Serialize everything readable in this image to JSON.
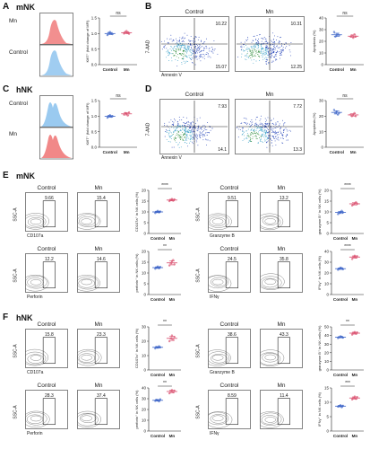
{
  "panels": [
    {
      "id": "A",
      "subtitle": "mNK"
    },
    {
      "id": "B"
    },
    {
      "id": "C",
      "subtitle": "hNK"
    },
    {
      "id": "D"
    },
    {
      "id": "E",
      "subtitle": "mNK"
    },
    {
      "id": "F",
      "subtitle": "hNK"
    }
  ],
  "colors": {
    "control_hist": "#8fc4ee",
    "mn_hist": "#f07b7b",
    "control_dot": "#3a63c7",
    "mn_dot": "#d94a6a"
  },
  "histograms": {
    "A": {
      "labels": [
        "Mn",
        "Control"
      ]
    },
    "C": {
      "labels": [
        "Control",
        "Mn"
      ]
    }
  },
  "scatter": {
    "B": {
      "xlabel": "Annexin V",
      "ylabel": "7-AAD",
      "plots": [
        {
          "title": "Control",
          "q": [
            "10.22",
            "15.07"
          ]
        },
        {
          "title": "Mn",
          "q": [
            "10.31",
            "12.25"
          ]
        }
      ]
    },
    "D": {
      "xlabel": "Annexin V",
      "ylabel": "7-AAD",
      "plots": [
        {
          "title": "Control",
          "q": [
            "7.93",
            "14.1"
          ]
        },
        {
          "title": "Mn",
          "q": [
            "7.72",
            "13.3"
          ]
        }
      ]
    }
  },
  "flow": {
    "E": [
      {
        "xlabel": "CD107a",
        "ylabel": "SSC-A",
        "plots": [
          {
            "title": "Control",
            "gate": "9.66"
          },
          {
            "title": "Mn",
            "gate": "15.4"
          }
        ]
      },
      {
        "xlabel": "Granzyme B",
        "ylabel": "SSC-A",
        "plots": [
          {
            "title": "Control",
            "gate": "9.51"
          },
          {
            "title": "Mn",
            "gate": "13.2"
          }
        ]
      },
      {
        "xlabel": "Perforin",
        "ylabel": "SSC-A",
        "plots": [
          {
            "title": "Control",
            "gate": "12.2"
          },
          {
            "title": "Mn",
            "gate": "14.6"
          }
        ]
      },
      {
        "xlabel": "IFNγ",
        "ylabel": "SSC-A",
        "plots": [
          {
            "title": "Control",
            "gate": "24.5"
          },
          {
            "title": "Mn",
            "gate": "35.8"
          }
        ]
      }
    ],
    "F": [
      {
        "xlabel": "CD107a",
        "ylabel": "SSC-A",
        "plots": [
          {
            "title": "Control",
            "gate": "15.8"
          },
          {
            "title": "Mn",
            "gate": "23.3"
          }
        ]
      },
      {
        "xlabel": "Granzyme B",
        "ylabel": "SSC-A",
        "plots": [
          {
            "title": "Control",
            "gate": "38.6"
          },
          {
            "title": "Mn",
            "gate": "43.3"
          }
        ]
      },
      {
        "xlabel": "Perforin",
        "ylabel": "SSC-A",
        "plots": [
          {
            "title": "Control",
            "gate": "28.3"
          },
          {
            "title": "Mn",
            "gate": "37.4"
          }
        ]
      },
      {
        "xlabel": "IFNγ",
        "ylabel": "SSC-A",
        "plots": [
          {
            "title": "Control",
            "gate": "8.59"
          },
          {
            "title": "Mn",
            "gate": "11.4"
          }
        ]
      }
    ]
  },
  "chart_data": [
    {
      "type": "scatter",
      "panel": "A",
      "categories": [
        "Control",
        "Mn"
      ],
      "ylabel": "Ki67⁺ (fold change of MFI)",
      "ylim": [
        0,
        1.5
      ],
      "yticks": [
        "0.0",
        "0.5",
        "1.0",
        "1.5"
      ],
      "significance": "ns",
      "series": [
        {
          "name": "Control",
          "values": [
            0.95,
            1.02,
            1.05,
            1.0,
            0.98
          ]
        },
        {
          "name": "Mn",
          "values": [
            1.0,
            1.05,
            1.08,
            1.02,
            0.99
          ]
        }
      ]
    },
    {
      "type": "scatter",
      "panel": "B",
      "categories": [
        "Control",
        "Mn"
      ],
      "ylabel": "Apoptosis (%)",
      "ylim": [
        0,
        40
      ],
      "yticks": [
        "0",
        "10",
        "20",
        "30",
        "40"
      ],
      "significance": "ns",
      "series": [
        {
          "name": "Control",
          "values": [
            28,
            24,
            25,
            26,
            25
          ]
        },
        {
          "name": "Mn",
          "values": [
            24,
            25,
            23,
            26,
            24
          ]
        }
      ]
    },
    {
      "type": "scatter",
      "panel": "C",
      "categories": [
        "Control",
        "Mn"
      ],
      "ylabel": "Ki67⁺ (fold change of MFI)",
      "ylim": [
        0,
        1.5
      ],
      "yticks": [
        "0.0",
        "0.5",
        "1.0",
        "1.5"
      ],
      "significance": "ns",
      "series": [
        {
          "name": "Control",
          "values": [
            0.95,
            1.0,
            1.03,
            0.98,
            1.0
          ]
        },
        {
          "name": "Mn",
          "values": [
            1.05,
            1.1,
            1.08,
            1.02,
            1.12
          ]
        }
      ]
    },
    {
      "type": "scatter",
      "panel": "D",
      "categories": [
        "Control",
        "Mn"
      ],
      "ylabel": "Apoptosis (%)",
      "ylim": [
        0,
        30
      ],
      "yticks": [
        "0",
        "10",
        "20",
        "30"
      ],
      "significance": "ns",
      "series": [
        {
          "name": "Control",
          "values": [
            24,
            22,
            23,
            21,
            22
          ]
        },
        {
          "name": "Mn",
          "values": [
            21,
            20,
            21,
            22,
            20
          ]
        }
      ]
    },
    {
      "type": "scatter",
      "panel": "E1",
      "categories": [
        "Control",
        "Mn"
      ],
      "ylabel": "CD107a⁺ in NK cells (%)",
      "ylim": [
        0,
        20
      ],
      "yticks": [
        "0",
        "5",
        "10",
        "15",
        "20"
      ],
      "significance": "****",
      "series": [
        {
          "name": "Control",
          "values": [
            9.5,
            10,
            10.5,
            9.8,
            10.2
          ]
        },
        {
          "name": "Mn",
          "values": [
            15,
            15.5,
            16,
            15.2,
            15.8
          ]
        }
      ]
    },
    {
      "type": "scatter",
      "panel": "E2",
      "categories": [
        "Control",
        "Mn"
      ],
      "ylabel": "granzyme B⁺ in NK cells (%)",
      "ylim": [
        0,
        20
      ],
      "yticks": [
        "0",
        "5",
        "10",
        "15",
        "20"
      ],
      "significance": "****",
      "series": [
        {
          "name": "Control",
          "values": [
            9,
            9.5,
            10,
            10.5,
            9.8
          ]
        },
        {
          "name": "Mn",
          "values": [
            13,
            13.5,
            14,
            14.5,
            13.8
          ]
        }
      ]
    },
    {
      "type": "scatter",
      "panel": "E3",
      "categories": [
        "Control",
        "Mn"
      ],
      "ylabel": "perforin⁺ in NK cells (%)",
      "ylim": [
        0,
        20
      ],
      "yticks": [
        "0",
        "5",
        "10",
        "15",
        "20"
      ],
      "significance": "**",
      "series": [
        {
          "name": "Control",
          "values": [
            12,
            12.5,
            13,
            12.2,
            12.8
          ]
        },
        {
          "name": "Mn",
          "values": [
            13.5,
            14.5,
            15.5,
            16,
            14
          ]
        }
      ]
    },
    {
      "type": "scatter",
      "panel": "E4",
      "categories": [
        "Control",
        "Mn"
      ],
      "ylabel": "IFNγ⁺ in NK cells (%)",
      "ylim": [
        0,
        40
      ],
      "yticks": [
        "0",
        "10",
        "20",
        "30",
        "40"
      ],
      "significance": "****",
      "series": [
        {
          "name": "Control",
          "values": [
            23,
            24,
            25,
            24.5,
            23.5
          ]
        },
        {
          "name": "Mn",
          "values": [
            33,
            35,
            36,
            34.5,
            35.5
          ]
        }
      ]
    },
    {
      "type": "scatter",
      "panel": "F1",
      "categories": [
        "Control",
        "Mn"
      ],
      "ylabel": "CD107a⁺ in NK cells (%)",
      "ylim": [
        0,
        30
      ],
      "yticks": [
        "0",
        "10",
        "20",
        "30"
      ],
      "significance": "**",
      "series": [
        {
          "name": "Control",
          "values": [
            15,
            16,
            15.5,
            16.5,
            15.8
          ]
        },
        {
          "name": "Mn",
          "values": [
            20,
            22,
            24,
            21,
            23
          ]
        }
      ]
    },
    {
      "type": "scatter",
      "panel": "F2",
      "categories": [
        "Control",
        "Mn"
      ],
      "ylabel": "granzyme B⁺ in NK cells (%)",
      "ylim": [
        0,
        50
      ],
      "yticks": [
        "0",
        "10",
        "20",
        "30",
        "40",
        "50"
      ],
      "significance": "**",
      "series": [
        {
          "name": "Control",
          "values": [
            37,
            38,
            39,
            38.5,
            37.5
          ]
        },
        {
          "name": "Mn",
          "values": [
            41,
            43,
            44,
            42,
            43.5
          ]
        }
      ]
    },
    {
      "type": "scatter",
      "panel": "F3",
      "categories": [
        "Control",
        "Mn"
      ],
      "ylabel": "perforin⁺ in NK cells (%)",
      "ylim": [
        0,
        40
      ],
      "yticks": [
        "0",
        "10",
        "20",
        "30",
        "40"
      ],
      "significance": "**",
      "series": [
        {
          "name": "Control",
          "values": [
            28,
            29,
            28.5,
            27.5,
            29.5
          ]
        },
        {
          "name": "Mn",
          "values": [
            35,
            37,
            38,
            36,
            37.5
          ]
        }
      ]
    },
    {
      "type": "scatter",
      "panel": "F4",
      "categories": [
        "Control",
        "Mn"
      ],
      "ylabel": "IFNγ⁺ in NK cells (%)",
      "ylim": [
        0,
        15
      ],
      "yticks": [
        "0",
        "5",
        "10",
        "15"
      ],
      "significance": "***",
      "series": [
        {
          "name": "Control",
          "values": [
            8.5,
            8.7,
            9,
            8.3,
            8.8
          ]
        },
        {
          "name": "Mn",
          "values": [
            11,
            11.5,
            12,
            11.2,
            11.8
          ]
        }
      ]
    }
  ]
}
